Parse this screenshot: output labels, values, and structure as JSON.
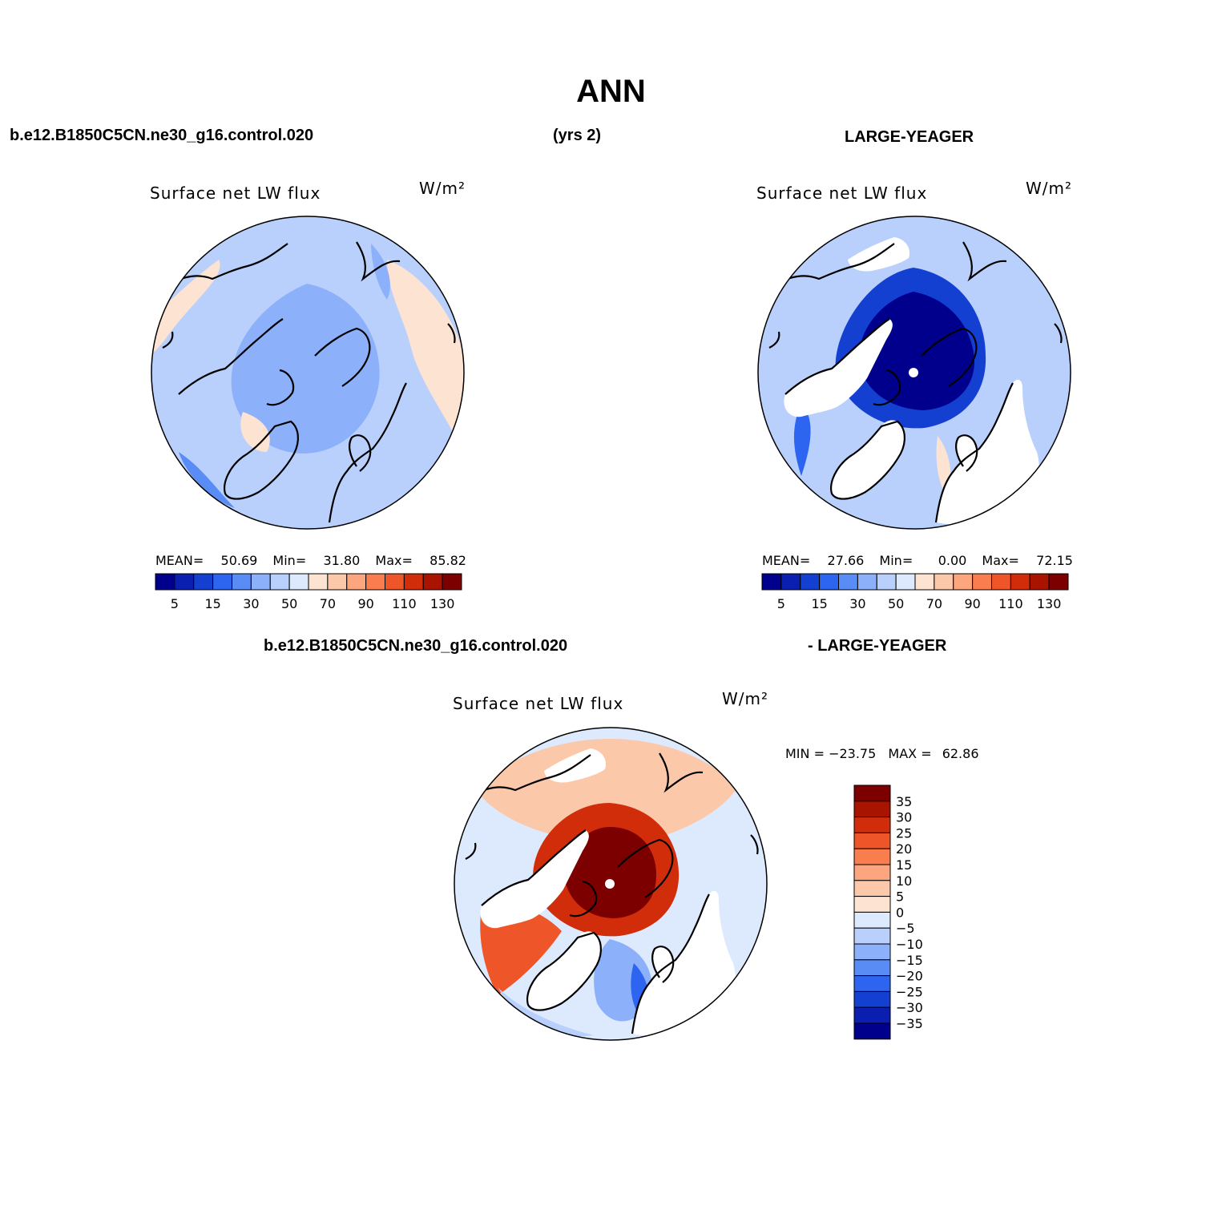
{
  "figure": {
    "title": "ANN",
    "case_label": "b.e12.B1850C5CN.ne30_g16.control.020",
    "years_label": "(yrs 2)",
    "obs_label": "LARGE-YEAGER",
    "diff_case_label": "b.e12.B1850C5CN.ne30_g16.control.020",
    "diff_obs_label": "- LARGE-YEAGER"
  },
  "colors": {
    "abs_scale": [
      "#00008c",
      "#0a1eaf",
      "#1440d2",
      "#2d64f0",
      "#5a8cf5",
      "#8cb0fa",
      "#b9d0fc",
      "#ddeafe",
      "#fde4d2",
      "#fcc8aa",
      "#fca680",
      "#fa7d50",
      "#ee5528",
      "#d22d0a",
      "#a81400",
      "#7d0000"
    ],
    "diff_scale": [
      "#00008c",
      "#0a1eaf",
      "#1440d2",
      "#2d64f0",
      "#5a8cf5",
      "#8cb0fa",
      "#b9d0fc",
      "#ddeafe",
      "#fde4d2",
      "#fcc8aa",
      "#fca680",
      "#fa7d50",
      "#ee5528",
      "#d22d0a",
      "#a81400",
      "#7d0000"
    ]
  },
  "chart_data": [
    {
      "type": "heatmap",
      "projection": "north-polar-stereographic",
      "title": "Surface net LW flux",
      "units": "W/m²",
      "stats": {
        "mean_label": "MEAN=",
        "mean": "50.69",
        "min_label": "Min=",
        "min": "31.80",
        "max_label": "Max=",
        "max": "85.82"
      },
      "colorbar": {
        "orientation": "horizontal",
        "levels": [
          5,
          10,
          15,
          20,
          30,
          40,
          50,
          60,
          70,
          80,
          90,
          100,
          110,
          120,
          130
        ],
        "tick_labels": [
          "5",
          "15",
          "30",
          "50",
          "70",
          "90",
          "110",
          "130"
        ]
      },
      "field_description": "mostly light blue (30-60) over ocean and land, pale orange (60-70) in North Atlantic and North Pacific margins"
    },
    {
      "type": "heatmap",
      "projection": "north-polar-stereographic",
      "title": "Surface net LW flux",
      "units": "W/m²",
      "stats": {
        "mean_label": "MEAN=",
        "mean": "27.66",
        "min_label": "Min=",
        "min": "0.00",
        "max_label": "Max=",
        "max": "72.15"
      },
      "colorbar": {
        "orientation": "horizontal",
        "levels": [
          5,
          10,
          15,
          20,
          30,
          40,
          50,
          60,
          70,
          80,
          90,
          100,
          110,
          120,
          130
        ],
        "tick_labels": [
          "5",
          "15",
          "30",
          "50",
          "70",
          "90",
          "110",
          "130"
        ]
      },
      "field_description": "ocean only; dark blue (<10) over central Arctic, blue (15-50) elsewhere, land masked"
    },
    {
      "type": "heatmap",
      "projection": "north-polar-stereographic",
      "title": "Surface net LW flux",
      "units": "W/m²",
      "stats": {
        "min_label": "MIN =",
        "min": "−23.75",
        "max_label": "MAX =",
        "max": "62.86"
      },
      "colorbar": {
        "orientation": "vertical",
        "levels": [
          35,
          30,
          25,
          20,
          15,
          10,
          5,
          0,
          -5,
          -10,
          -15,
          -20,
          -25,
          -30,
          -35
        ],
        "tick_labels": [
          "35",
          "30",
          "25",
          "20",
          "15",
          "10",
          "5",
          "0",
          "−5",
          "−10",
          "−15",
          "−20",
          "−25",
          "−30",
          "−35"
        ]
      },
      "field_description": "dark red (>35) over central Arctic, red/orange along coasts, light blue to blue (-5 to -20) in Nordic seas"
    }
  ]
}
